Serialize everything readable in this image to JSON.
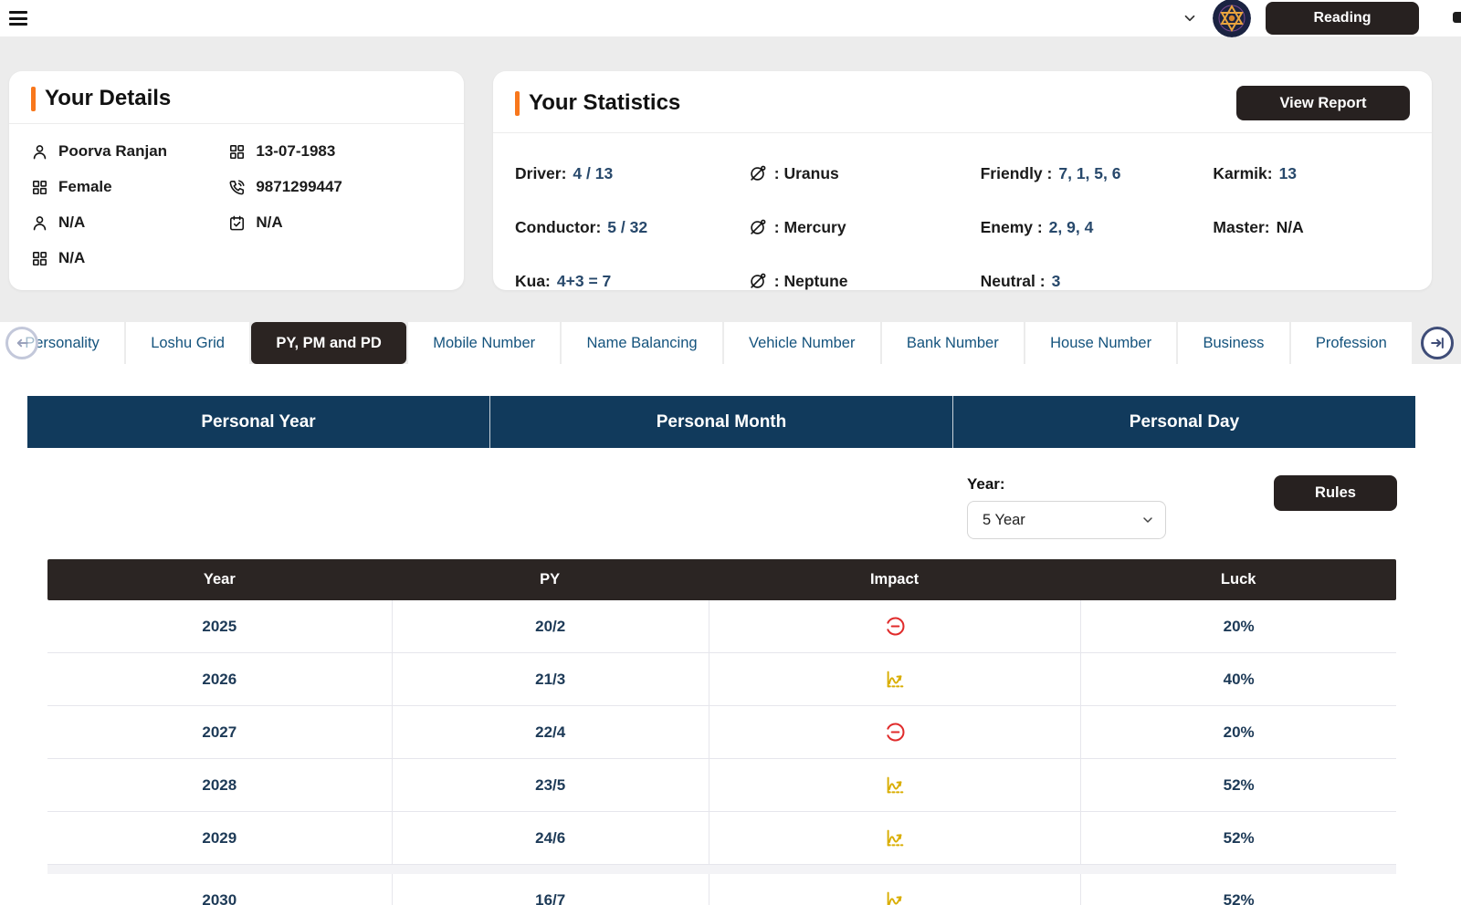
{
  "topbar": {
    "reading_label": "Reading"
  },
  "details": {
    "title": "Your Details",
    "items": [
      {
        "icon": "person-icon",
        "text": "Poorva Ranjan"
      },
      {
        "icon": "grid-icon",
        "text": "13-07-1983"
      },
      {
        "icon": "grid-icon",
        "text": "Female"
      },
      {
        "icon": "phone-icon",
        "text": "9871299447"
      },
      {
        "icon": "person-icon",
        "text": "N/A"
      },
      {
        "icon": "calendar-check-icon",
        "text": "N/A"
      },
      {
        "icon": "grid-icon",
        "text": "N/A"
      }
    ]
  },
  "stats": {
    "title": "Your Statistics",
    "view_report_label": "View Report",
    "metrics": [
      {
        "label": "Driver:",
        "value": "4 / 13"
      },
      {
        "label": "Conductor:",
        "value": "5 / 32"
      },
      {
        "label": "Kua:",
        "value": "4+3 = 7"
      }
    ],
    "planets": [
      {
        "icon": "planet-icon",
        "name": ": Uranus"
      },
      {
        "icon": "planet-icon",
        "name": ": Mercury"
      },
      {
        "icon": "planet-icon",
        "name": ": Neptune"
      }
    ],
    "relations": [
      {
        "label": "Friendly :",
        "value": "7, 1, 5, 6"
      },
      {
        "label": "Enemy :",
        "value": "2, 9, 4"
      },
      {
        "label": "Neutral :",
        "value": "3"
      }
    ],
    "extras": [
      {
        "label": "Karmik:",
        "value": "13",
        "muted": false
      },
      {
        "label": "Master:",
        "value": "N/A",
        "muted": true
      }
    ]
  },
  "tabs": {
    "items": [
      {
        "label": "Personality",
        "active": false
      },
      {
        "label": "Loshu Grid",
        "active": false
      },
      {
        "label": "PY, PM and PD",
        "active": true
      },
      {
        "label": "Mobile Number",
        "active": false
      },
      {
        "label": "Name Balancing",
        "active": false
      },
      {
        "label": "Vehicle Number",
        "active": false
      },
      {
        "label": "Bank Number",
        "active": false
      },
      {
        "label": "House Number",
        "active": false
      },
      {
        "label": "Business",
        "active": false
      },
      {
        "label": "Profession",
        "active": false
      }
    ]
  },
  "sections": {
    "items": [
      "Personal Year",
      "Personal Month",
      "Personal Day"
    ]
  },
  "controls": {
    "year_label": "Year:",
    "year_value": "5 Year",
    "rules_label": "Rules"
  },
  "table": {
    "headers": [
      "Year",
      "PY",
      "Impact",
      "Luck"
    ],
    "rows": [
      {
        "year": "2025",
        "py": "20/2",
        "impact": "negative",
        "luck": "20%"
      },
      {
        "year": "2026",
        "py": "21/3",
        "impact": "positive",
        "luck": "40%"
      },
      {
        "year": "2027",
        "py": "22/4",
        "impact": "negative",
        "luck": "20%"
      },
      {
        "year": "2028",
        "py": "23/5",
        "impact": "positive",
        "luck": "52%"
      },
      {
        "year": "2029",
        "py": "24/6",
        "impact": "positive",
        "luck": "52%"
      },
      {
        "year": "2030",
        "py": "16/7",
        "impact": "positive",
        "luck": "52%",
        "partial": true
      }
    ]
  },
  "colors": {
    "accent_orange": "#f8771c",
    "dark_button": "#272120",
    "section_navy": "#113a5c",
    "tab_blue": "#14537d",
    "value_navy": "#27486b",
    "impact_negative": "#e02b2b",
    "impact_positive": "#d9ad00"
  }
}
